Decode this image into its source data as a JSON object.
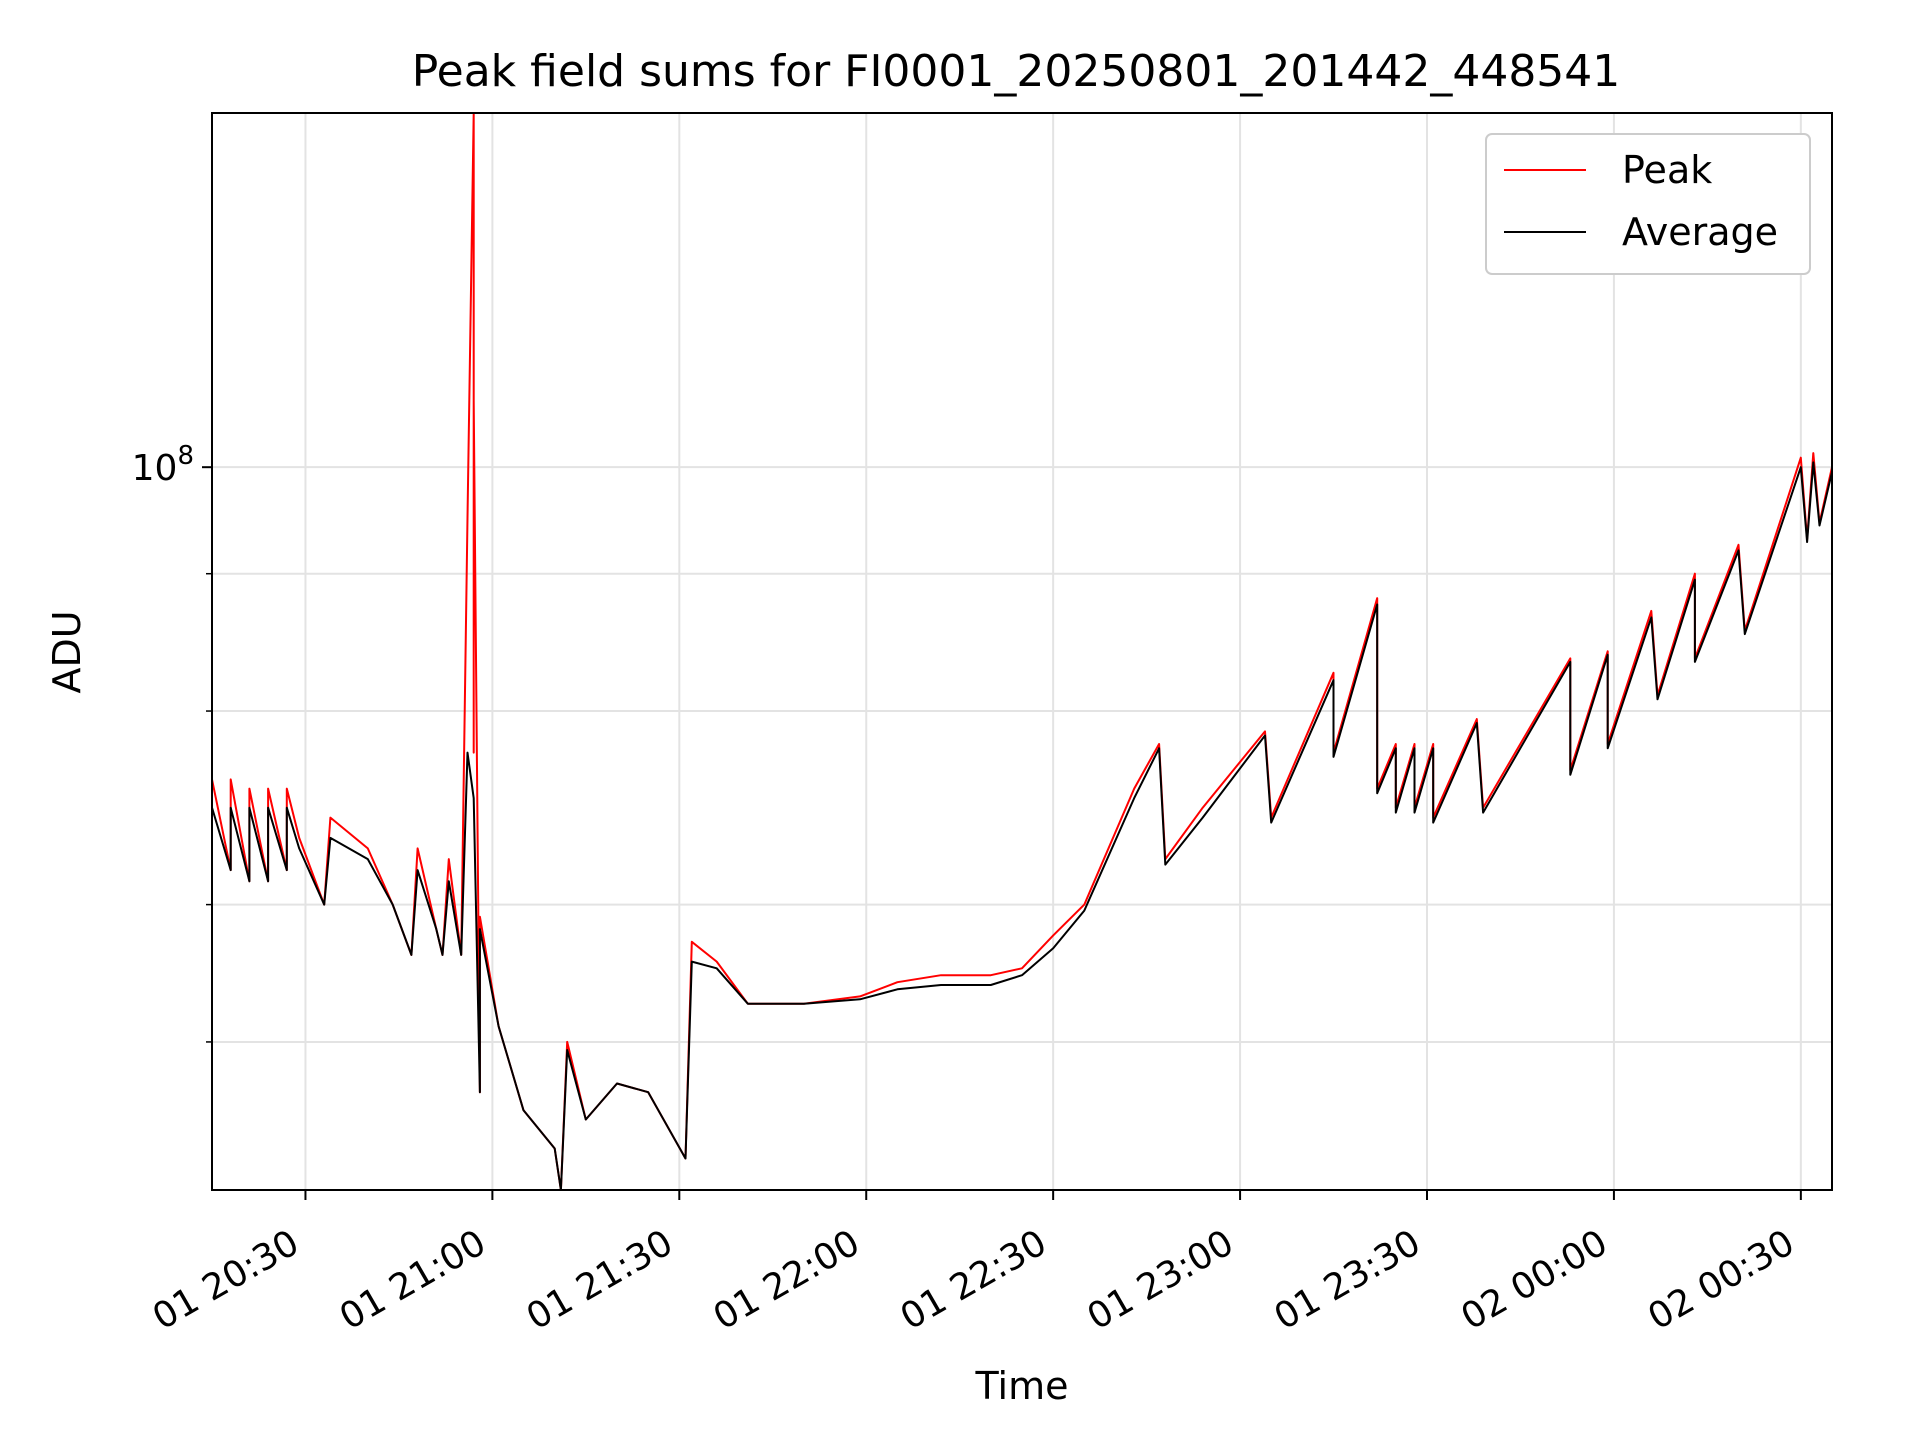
{
  "chart_data": {
    "type": "line",
    "title": "Peak field sums for FI0001_20250801_201442_448541",
    "xlabel": "Time",
    "ylabel": "ADU",
    "y_scale": "log",
    "ylim": [
      22000000,
      210000000
    ],
    "xlim": [
      "2025-08-01 20:15",
      "2025-08-02 00:35"
    ],
    "x_ticks": [
      {
        "value": "2025-08-01 20:30",
        "label": "01 20:30"
      },
      {
        "value": "2025-08-01 21:00",
        "label": "01 21:00"
      },
      {
        "value": "2025-08-01 21:30",
        "label": "01 21:30"
      },
      {
        "value": "2025-08-01 22:00",
        "label": "01 22:00"
      },
      {
        "value": "2025-08-01 22:30",
        "label": "01 22:30"
      },
      {
        "value": "2025-08-01 23:00",
        "label": "01 23:00"
      },
      {
        "value": "2025-08-01 23:30",
        "label": "01 23:30"
      },
      {
        "value": "2025-08-02 00:00",
        "label": "02 00:00"
      },
      {
        "value": "2025-08-02 00:30",
        "label": "02 00:30"
      }
    ],
    "y_major_tick": {
      "value": 100000000,
      "base": "10",
      "exponent": "8"
    },
    "y_minor_ticks": [
      30000000,
      40000000,
      60000000,
      80000000
    ],
    "grid": true,
    "legend": {
      "position": "top-right"
    },
    "series": [
      {
        "name": "Peak",
        "color": "#ff0000",
        "points": [
          [
            "2025-08-01 20:15",
            42000000
          ],
          [
            "2025-08-01 20:15",
            52000000
          ],
          [
            "2025-08-01 20:18",
            43000000
          ],
          [
            "2025-08-01 20:18",
            52000000
          ],
          [
            "2025-08-01 20:21",
            42000000
          ],
          [
            "2025-08-01 20:21",
            51000000
          ],
          [
            "2025-08-01 20:24",
            42000000
          ],
          [
            "2025-08-01 20:24",
            51000000
          ],
          [
            "2025-08-01 20:27",
            43000000
          ],
          [
            "2025-08-01 20:27",
            51000000
          ],
          [
            "2025-08-01 20:29",
            46000000
          ],
          [
            "2025-08-01 20:33",
            40000000
          ],
          [
            "2025-08-01 20:34",
            48000000
          ],
          [
            "2025-08-01 20:40",
            45000000
          ],
          [
            "2025-08-01 20:44",
            40000000
          ],
          [
            "2025-08-01 20:47",
            36000000
          ],
          [
            "2025-08-01 20:48",
            45000000
          ],
          [
            "2025-08-01 20:51",
            38000000
          ],
          [
            "2025-08-01 20:52",
            36000000
          ],
          [
            "2025-08-01 20:53",
            44000000
          ],
          [
            "2025-08-01 20:55",
            36000000
          ],
          [
            "2025-08-01 20:56",
            90000000
          ],
          [
            "2025-08-01 20:57",
            210000000
          ],
          [
            "2025-08-01 20:57",
            55000000
          ],
          [
            "2025-08-01 20:57",
            115000000
          ],
          [
            "2025-08-01 20:58",
            27000000
          ],
          [
            "2025-08-01 20:58",
            39000000
          ],
          [
            "2025-08-01 21:01",
            31000000
          ],
          [
            "2025-08-01 21:05",
            26000000
          ],
          [
            "2025-08-01 21:10",
            24000000
          ],
          [
            "2025-08-01 21:11",
            22000000
          ],
          [
            "2025-08-01 21:12",
            30000000
          ],
          [
            "2025-08-01 21:15",
            25500000
          ],
          [
            "2025-08-01 21:20",
            27500000
          ],
          [
            "2025-08-01 21:25",
            27000000
          ],
          [
            "2025-08-01 21:31",
            23500000
          ],
          [
            "2025-08-01 21:32",
            37000000
          ],
          [
            "2025-08-01 21:36",
            35500000
          ],
          [
            "2025-08-01 21:41",
            32500000
          ],
          [
            "2025-08-01 21:50",
            32500000
          ],
          [
            "2025-08-01 21:59",
            33000000
          ],
          [
            "2025-08-01 22:05",
            34000000
          ],
          [
            "2025-08-01 22:12",
            34500000
          ],
          [
            "2025-08-01 22:20",
            34500000
          ],
          [
            "2025-08-01 22:25",
            35000000
          ],
          [
            "2025-08-01 22:30",
            37500000
          ],
          [
            "2025-08-01 22:35",
            40000000
          ],
          [
            "2025-08-01 22:43",
            51000000
          ],
          [
            "2025-08-01 22:47",
            56000000
          ],
          [
            "2025-08-01 22:48",
            44000000
          ],
          [
            "2025-08-01 22:54",
            49000000
          ],
          [
            "2025-08-01 23:04",
            57500000
          ],
          [
            "2025-08-01 23:05",
            48000000
          ],
          [
            "2025-08-01 23:15",
            65000000
          ],
          [
            "2025-08-01 23:15",
            55000000
          ],
          [
            "2025-08-01 23:22",
            76000000
          ],
          [
            "2025-08-01 23:22",
            51000000
          ],
          [
            "2025-08-01 23:25",
            56000000
          ],
          [
            "2025-08-01 23:25",
            49000000
          ],
          [
            "2025-08-01 23:28",
            56000000
          ],
          [
            "2025-08-01 23:28",
            49000000
          ],
          [
            "2025-08-01 23:31",
            56000000
          ],
          [
            "2025-08-01 23:31",
            48000000
          ],
          [
            "2025-08-01 23:38",
            59000000
          ],
          [
            "2025-08-01 23:39",
            49000000
          ],
          [
            "2025-08-01 23:53",
            67000000
          ],
          [
            "2025-08-01 23:53",
            53000000
          ],
          [
            "2025-08-01 23:59",
            68000000
          ],
          [
            "2025-08-01 23:59",
            56000000
          ],
          [
            "2025-08-02 00:06",
            74000000
          ],
          [
            "2025-08-02 00:07",
            62000000
          ],
          [
            "2025-08-02 00:13",
            80000000
          ],
          [
            "2025-08-02 00:13",
            67000000
          ],
          [
            "2025-08-02 00:20",
            85000000
          ],
          [
            "2025-08-02 00:21",
            71000000
          ],
          [
            "2025-08-02 00:30",
            102000000
          ],
          [
            "2025-08-02 00:31",
            86000000
          ],
          [
            "2025-08-02 00:32",
            103000000
          ],
          [
            "2025-08-02 00:33",
            89000000
          ],
          [
            "2025-08-02 00:35",
            100000000
          ]
        ]
      },
      {
        "name": "Average",
        "color": "#000000",
        "points": [
          [
            "2025-08-01 20:15",
            42000000
          ],
          [
            "2025-08-01 20:15",
            49000000
          ],
          [
            "2025-08-01 20:18",
            43000000
          ],
          [
            "2025-08-01 20:18",
            49000000
          ],
          [
            "2025-08-01 20:21",
            42000000
          ],
          [
            "2025-08-01 20:21",
            49000000
          ],
          [
            "2025-08-01 20:24",
            42000000
          ],
          [
            "2025-08-01 20:24",
            49000000
          ],
          [
            "2025-08-01 20:27",
            43000000
          ],
          [
            "2025-08-01 20:27",
            49000000
          ],
          [
            "2025-08-01 20:29",
            45000000
          ],
          [
            "2025-08-01 20:33",
            40000000
          ],
          [
            "2025-08-01 20:34",
            46000000
          ],
          [
            "2025-08-01 20:40",
            44000000
          ],
          [
            "2025-08-01 20:44",
            40000000
          ],
          [
            "2025-08-01 20:47",
            36000000
          ],
          [
            "2025-08-01 20:48",
            43000000
          ],
          [
            "2025-08-01 20:51",
            38000000
          ],
          [
            "2025-08-01 20:52",
            36000000
          ],
          [
            "2025-08-01 20:53",
            42000000
          ],
          [
            "2025-08-01 20:55",
            36000000
          ],
          [
            "2025-08-01 20:56",
            55000000
          ],
          [
            "2025-08-01 20:57",
            50000000
          ],
          [
            "2025-08-01 20:58",
            27000000
          ],
          [
            "2025-08-01 20:58",
            38000000
          ],
          [
            "2025-08-01 21:01",
            31000000
          ],
          [
            "2025-08-01 21:05",
            26000000
          ],
          [
            "2025-08-01 21:10",
            24000000
          ],
          [
            "2025-08-01 21:11",
            22000000
          ],
          [
            "2025-08-01 21:12",
            29500000
          ],
          [
            "2025-08-01 21:15",
            25500000
          ],
          [
            "2025-08-01 21:20",
            27500000
          ],
          [
            "2025-08-01 21:25",
            27000000
          ],
          [
            "2025-08-01 21:31",
            23500000
          ],
          [
            "2025-08-01 21:32",
            35500000
          ],
          [
            "2025-08-01 21:36",
            35000000
          ],
          [
            "2025-08-01 21:41",
            32500000
          ],
          [
            "2025-08-01 21:50",
            32500000
          ],
          [
            "2025-08-01 21:59",
            32800000
          ],
          [
            "2025-08-01 22:05",
            33500000
          ],
          [
            "2025-08-01 22:12",
            33800000
          ],
          [
            "2025-08-01 22:20",
            33800000
          ],
          [
            "2025-08-01 22:25",
            34500000
          ],
          [
            "2025-08-01 22:30",
            36500000
          ],
          [
            "2025-08-01 22:35",
            39500000
          ],
          [
            "2025-08-01 22:43",
            50000000
          ],
          [
            "2025-08-01 22:47",
            55500000
          ],
          [
            "2025-08-01 22:48",
            43500000
          ],
          [
            "2025-08-01 22:54",
            48000000
          ],
          [
            "2025-08-01 23:04",
            57000000
          ],
          [
            "2025-08-01 23:05",
            47500000
          ],
          [
            "2025-08-01 23:15",
            64000000
          ],
          [
            "2025-08-01 23:15",
            54500000
          ],
          [
            "2025-08-01 23:22",
            75000000
          ],
          [
            "2025-08-01 23:22",
            50500000
          ],
          [
            "2025-08-01 23:25",
            55500000
          ],
          [
            "2025-08-01 23:25",
            48500000
          ],
          [
            "2025-08-01 23:28",
            55500000
          ],
          [
            "2025-08-01 23:28",
            48500000
          ],
          [
            "2025-08-01 23:31",
            55500000
          ],
          [
            "2025-08-01 23:31",
            47500000
          ],
          [
            "2025-08-01 23:38",
            58500000
          ],
          [
            "2025-08-01 23:39",
            48500000
          ],
          [
            "2025-08-01 23:53",
            66500000
          ],
          [
            "2025-08-01 23:53",
            52500000
          ],
          [
            "2025-08-01 23:59",
            67500000
          ],
          [
            "2025-08-01 23:59",
            55500000
          ],
          [
            "2025-08-02 00:06",
            73000000
          ],
          [
            "2025-08-02 00:07",
            61500000
          ],
          [
            "2025-08-02 00:13",
            79000000
          ],
          [
            "2025-08-02 00:13",
            66500000
          ],
          [
            "2025-08-02 00:20",
            84000000
          ],
          [
            "2025-08-02 00:21",
            70500000
          ],
          [
            "2025-08-02 00:30",
            100000000
          ],
          [
            "2025-08-02 00:31",
            85500000
          ],
          [
            "2025-08-02 00:32",
            101000000
          ],
          [
            "2025-08-02 00:33",
            88500000
          ],
          [
            "2025-08-02 00:35",
            99000000
          ]
        ]
      }
    ]
  }
}
